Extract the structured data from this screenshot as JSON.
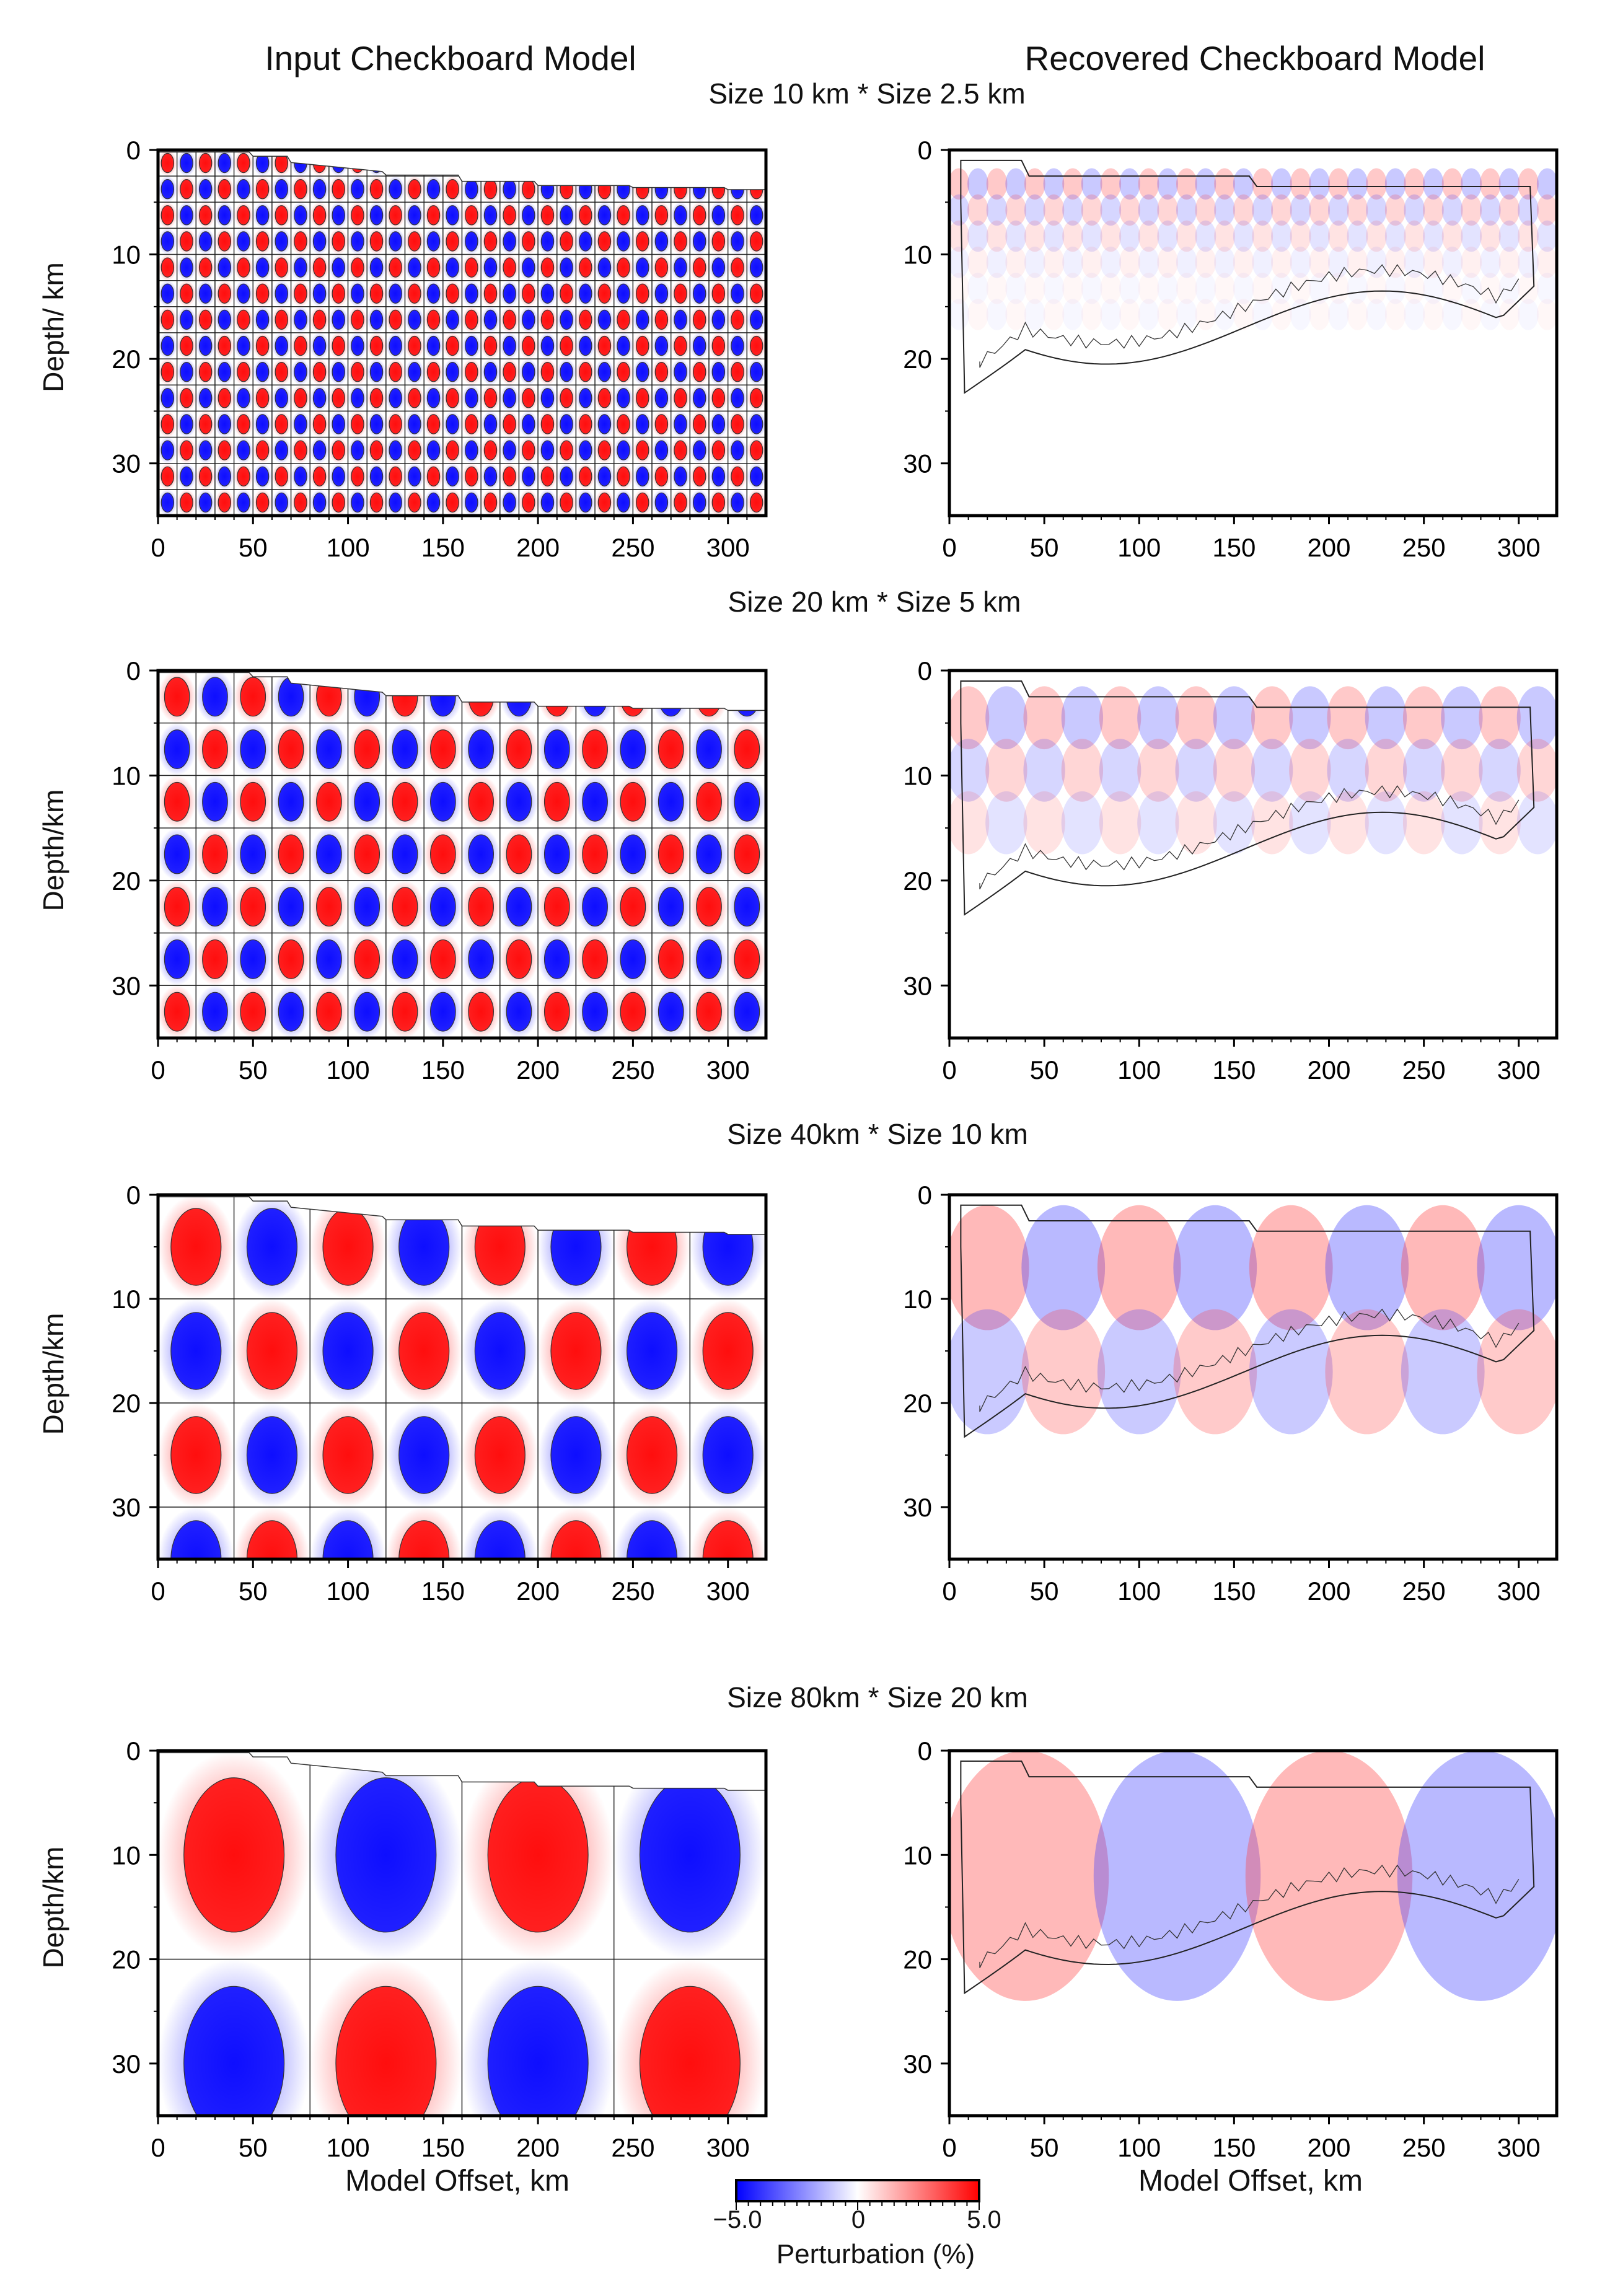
{
  "figure": {
    "left_title": "Input Checkboard Model",
    "right_title": "Recovered Checkboard Model",
    "x_axis_label": "Model Offset, km",
    "colorbar": {
      "title": "Perturbation (%)",
      "min_label": "−5.0",
      "mid_label": "0",
      "max_label": "5.0",
      "colors": {
        "negative": "#0000ff",
        "zero": "#ffffff",
        "positive": "#ff0000"
      }
    },
    "rows": [
      {
        "title": "Size 10 km * Size 2.5 km",
        "ylabel": "Depth/ km",
        "ylabel_right": ""
      },
      {
        "title": "Size 20 km * Size 5 km",
        "ylabel": "Depth/km",
        "ylabel_right": ""
      },
      {
        "title": "Size 40km * Size 10 km",
        "ylabel": "Depth/km",
        "ylabel_right": ""
      },
      {
        "title": "Size 80km * Size 20 km",
        "ylabel": "Depth/km",
        "ylabel_right": ""
      }
    ]
  },
  "chart_data": [
    {
      "type": "heatmap",
      "panel": "input",
      "title": "Size 10 km * Size 2.5 km",
      "xlabel": "",
      "ylabel": "Depth/ km",
      "xlim": [
        0,
        320
      ],
      "ylim": [
        35,
        0
      ],
      "xticks": [
        0,
        50,
        100,
        150,
        200,
        250,
        300
      ],
      "yticks": [
        0,
        10,
        20,
        30
      ],
      "cell_x_km": 10,
      "cell_z_km": 2.5,
      "amplitude_pct": 5
    },
    {
      "type": "heatmap",
      "panel": "recovered",
      "title": "Size 10 km * Size 2.5 km",
      "xlabel": "",
      "ylabel": "",
      "xlim": [
        0,
        320
      ],
      "ylim": [
        35,
        0
      ],
      "xticks": [
        0,
        50,
        100,
        150,
        200,
        250,
        300
      ],
      "yticks": [
        0,
        10,
        20,
        30
      ],
      "cell_x_km": 10,
      "cell_z_km": 2.5
    },
    {
      "type": "heatmap",
      "panel": "input",
      "title": "Size 20 km * Size 5 km",
      "xlabel": "",
      "ylabel": "Depth/km",
      "xlim": [
        0,
        320
      ],
      "ylim": [
        35,
        0
      ],
      "xticks": [
        0,
        50,
        100,
        150,
        200,
        250,
        300
      ],
      "yticks": [
        0,
        10,
        20,
        30
      ],
      "cell_x_km": 20,
      "cell_z_km": 5,
      "amplitude_pct": 5
    },
    {
      "type": "heatmap",
      "panel": "recovered",
      "title": "Size 20 km * Size 5 km",
      "xlabel": "",
      "ylabel": "",
      "xlim": [
        0,
        320
      ],
      "ylim": [
        35,
        0
      ],
      "xticks": [
        0,
        50,
        100,
        150,
        200,
        250,
        300
      ],
      "yticks": [
        0,
        10,
        20,
        30
      ],
      "cell_x_km": 20,
      "cell_z_km": 5
    },
    {
      "type": "heatmap",
      "panel": "input",
      "title": "Size 40km * Size 10 km",
      "xlabel": "",
      "ylabel": "Depth/km",
      "xlim": [
        0,
        320
      ],
      "ylim": [
        35,
        0
      ],
      "xticks": [
        0,
        50,
        100,
        150,
        200,
        250,
        300
      ],
      "yticks": [
        0,
        10,
        20,
        30
      ],
      "cell_x_km": 40,
      "cell_z_km": 10,
      "amplitude_pct": 5
    },
    {
      "type": "heatmap",
      "panel": "recovered",
      "title": "Size 40km * Size 10 km",
      "xlabel": "",
      "ylabel": "",
      "xlim": [
        0,
        320
      ],
      "ylim": [
        35,
        0
      ],
      "xticks": [
        0,
        50,
        100,
        150,
        200,
        250,
        300
      ],
      "yticks": [
        0,
        10,
        20,
        30
      ],
      "cell_x_km": 40,
      "cell_z_km": 10
    },
    {
      "type": "heatmap",
      "panel": "input",
      "title": "Size 80km * Size 20 km",
      "xlabel": "Model Offset, km",
      "ylabel": "Depth/km",
      "xlim": [
        0,
        320
      ],
      "ylim": [
        35,
        0
      ],
      "xticks": [
        0,
        50,
        100,
        150,
        200,
        250,
        300
      ],
      "yticks": [
        0,
        10,
        20,
        30
      ],
      "cell_x_km": 80,
      "cell_z_km": 20,
      "amplitude_pct": 5
    },
    {
      "type": "heatmap",
      "panel": "recovered",
      "title": "Size 80km * Size 20 km",
      "xlabel": "Model Offset, km",
      "ylabel": "",
      "xlim": [
        0,
        320
      ],
      "ylim": [
        35,
        0
      ],
      "xticks": [
        0,
        50,
        100,
        150,
        200,
        250,
        300
      ],
      "yticks": [
        0,
        10,
        20,
        30
      ],
      "cell_x_km": 80,
      "cell_z_km": 20
    }
  ]
}
